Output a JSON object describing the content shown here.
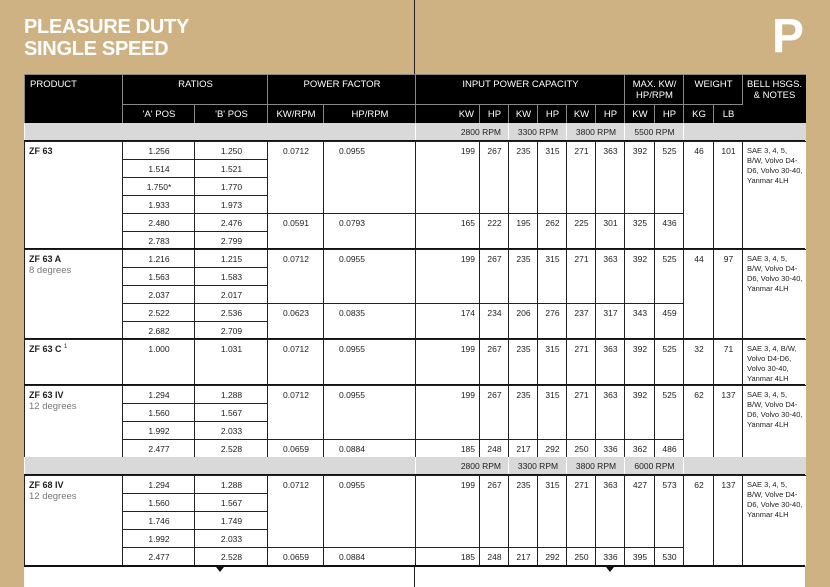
{
  "title": {
    "line1": "PLEASURE DUTY",
    "line2": "SINGLE SPEED",
    "section_letter": "P"
  },
  "headers": {
    "product": "PRODUCT",
    "ratios": "RATIOS",
    "a_pos": "'A' POS",
    "b_pos": "'B' POS",
    "power_factor": "POWER FACTOR",
    "kw_rpm": "KW/RPM",
    "hp_rpm": "HP/RPM",
    "input_power": "INPUT POWER CAPACITY",
    "max": "MAX. KW/ HP/RPM",
    "weight": "WEIGHT",
    "kg": "KG",
    "lb": "LB",
    "notes": "BELL HSGS. & NOTES",
    "kw": "KW",
    "hp": "HP"
  },
  "sections": [
    {
      "rpm_band": [
        "2800 RPM",
        "3300 RPM",
        "3800 RPM",
        "5500 RPM"
      ],
      "products": [
        {
          "name": "ZF 63",
          "sup": "",
          "subtitle": "",
          "ratios": [
            {
              "a": "1.256",
              "b": "1.250"
            },
            {
              "a": "1.514",
              "b": "1.521"
            },
            {
              "a": "1.750*",
              "b": "1.770"
            },
            {
              "a": "1.933",
              "b": "1.973"
            },
            {
              "a": "2.480",
              "b": "2.476"
            },
            {
              "a": "2.783",
              "b": "2.799"
            }
          ],
          "factor_groups": [
            {
              "rows": 4,
              "kw_rpm": "0.0712",
              "hp_rpm": "0.0955",
              "capacity": [
                "199",
                "267",
                "235",
                "315",
                "271",
                "363",
                "392",
                "525"
              ]
            },
            {
              "rows": 2,
              "kw_rpm": "0.0591",
              "hp_rpm": "0.0793",
              "capacity": [
                "165",
                "222",
                "195",
                "262",
                "225",
                "301",
                "325",
                "436"
              ]
            }
          ],
          "kg": "46",
          "lb": "101",
          "notes": "SAE 3, 4, 5, B/W, Volvo D4-D6, Volvo 30-40, Yanmar 4LH"
        },
        {
          "name": "ZF 63 A",
          "sup": "",
          "subtitle": "8 degrees",
          "ratios": [
            {
              "a": "1.216",
              "b": "1.215"
            },
            {
              "a": "1.563",
              "b": "1.583"
            },
            {
              "a": "2.037",
              "b": "2.017"
            },
            {
              "a": "2.522",
              "b": "2.536"
            },
            {
              "a": "2.682",
              "b": "2.709"
            }
          ],
          "factor_groups": [
            {
              "rows": 3,
              "kw_rpm": "0.0712",
              "hp_rpm": "0.0955",
              "capacity": [
                "199",
                "267",
                "235",
                "315",
                "271",
                "363",
                "392",
                "525"
              ]
            },
            {
              "rows": 2,
              "kw_rpm": "0.0623",
              "hp_rpm": "0.0835",
              "capacity": [
                "174",
                "234",
                "206",
                "276",
                "237",
                "317",
                "343",
                "459"
              ]
            }
          ],
          "kg": "44",
          "lb": "97",
          "notes": "SAE 3, 4, 5, B/W, Volvo D4-D6, Volvo 30-40, Yanmar 4LH"
        },
        {
          "name": "ZF 63 C",
          "sup": "1",
          "subtitle": "",
          "ratios": [
            {
              "a": "1.000",
              "b": "1.031"
            }
          ],
          "factor_groups": [
            {
              "rows": 1,
              "kw_rpm": "0.0712",
              "hp_rpm": "0.0955",
              "capacity": [
                "199",
                "267",
                "235",
                "315",
                "271",
                "363",
                "392",
                "525"
              ]
            }
          ],
          "kg": "32",
          "lb": "71",
          "notes": "SAE 3, 4, B/W, Volvo D4-D6, Volvo 30-40, Yanmar 4LH"
        },
        {
          "name": "ZF 63 IV",
          "sup": "",
          "subtitle": "12 degrees",
          "ratios": [
            {
              "a": "1.294",
              "b": "1.288"
            },
            {
              "a": "1.560",
              "b": "1.567"
            },
            {
              "a": "1.992",
              "b": "2.033"
            },
            {
              "a": "2.477",
              "b": "2.528"
            }
          ],
          "factor_groups": [
            {
              "rows": 3,
              "kw_rpm": "0.0712",
              "hp_rpm": "0.0955",
              "capacity": [
                "199",
                "267",
                "235",
                "315",
                "271",
                "363",
                "392",
                "525"
              ]
            },
            {
              "rows": 1,
              "kw_rpm": "0.0659",
              "hp_rpm": "0.0884",
              "capacity": [
                "185",
                "248",
                "217",
                "292",
                "250",
                "336",
                "362",
                "486"
              ]
            }
          ],
          "kg": "62",
          "lb": "137",
          "notes": "SAE 3, 4, 5, B/W, Volvo D4-D6, Volvo 30-40, Yanmar 4LH"
        }
      ]
    },
    {
      "rpm_band": [
        "2800 RPM",
        "3300 RPM",
        "3800 RPM",
        "6000 RPM"
      ],
      "products": [
        {
          "name": "ZF 68 IV",
          "sup": "",
          "subtitle": "12 degrees",
          "ratios": [
            {
              "a": "1.294",
              "b": "1.288"
            },
            {
              "a": "1.560",
              "b": "1.567"
            },
            {
              "a": "1.746",
              "b": "1.749"
            },
            {
              "a": "1.992",
              "b": "2.033"
            },
            {
              "a": "2.477",
              "b": "2.528"
            }
          ],
          "factor_groups": [
            {
              "rows": 4,
              "kw_rpm": "0.0712",
              "hp_rpm": "0.0955",
              "capacity": [
                "199",
                "267",
                "235",
                "315",
                "271",
                "363",
                "427",
                "573"
              ]
            },
            {
              "rows": 1,
              "kw_rpm": "0.0659",
              "hp_rpm": "0.0884",
              "capacity": [
                "185",
                "248",
                "217",
                "292",
                "250",
                "336",
                "395",
                "530"
              ]
            }
          ],
          "kg": "62",
          "lb": "137",
          "notes": "SAE 3, 4, 5, B/W, Volve D4-D6, Volve 30-40, Yanmar 4LH"
        }
      ]
    }
  ]
}
